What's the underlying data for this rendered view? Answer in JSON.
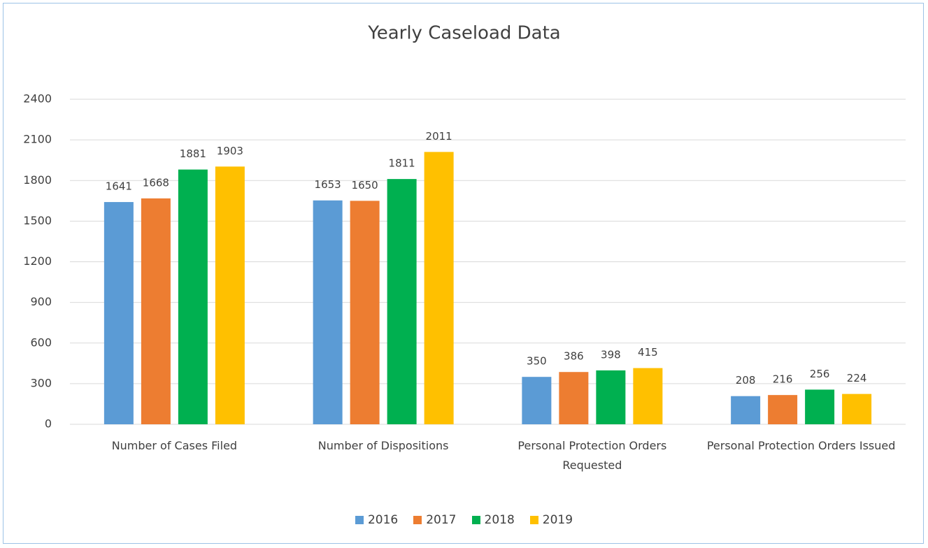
{
  "chart_data": {
    "type": "bar",
    "title": "Yearly Caseload Data",
    "categories": [
      "Number of Cases Filed",
      "Number of Dispositions",
      "Personal Protection Orders Requested",
      "Personal Protection Orders Issued"
    ],
    "series": [
      {
        "name": "2016",
        "color": "#5b9bd5",
        "values": [
          1641,
          1653,
          350,
          208
        ]
      },
      {
        "name": "2017",
        "color": "#ed7d31",
        "values": [
          1668,
          1650,
          386,
          216
        ]
      },
      {
        "name": "2018",
        "color": "#00b050",
        "values": [
          1881,
          1811,
          398,
          256
        ]
      },
      {
        "name": "2019",
        "color": "#ffc000",
        "values": [
          1903,
          2011,
          415,
          224
        ]
      }
    ],
    "ylim": [
      0,
      2400
    ],
    "yticks": [
      0,
      300,
      600,
      900,
      1200,
      1500,
      1800,
      2100,
      2400
    ],
    "grid": true,
    "legend": "bottom"
  }
}
